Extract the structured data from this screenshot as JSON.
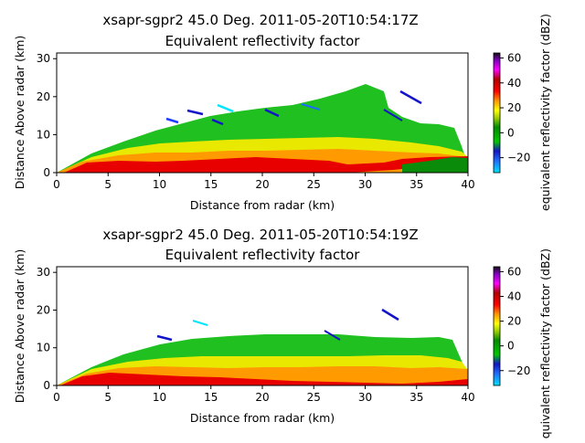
{
  "chart_data": [
    {
      "type": "heatmap",
      "title_line1": "xsapr-sgpr2 45.0 Deg. 2011-05-20T10:54:17Z",
      "title_line2": "Equivalent reflectivity factor",
      "xlabel": "Distance from radar (km)",
      "ylabel": "Distance Above radar  (km)",
      "xlim": [
        0,
        40
      ],
      "ylim": [
        0,
        31.5
      ],
      "xticks": [
        0,
        5,
        10,
        15,
        20,
        25,
        30,
        35,
        40
      ],
      "yticks": [
        0,
        10,
        20,
        30
      ],
      "grid": false,
      "colorbar": {
        "label": "equivalent reflectivity factor (dBZ)",
        "range": [
          -32,
          64
        ],
        "ticks": [
          -20,
          0,
          20,
          40,
          60
        ]
      },
      "echo_top_km": [
        [
          0,
          0
        ],
        [
          5,
          4.2
        ],
        [
          10,
          7.8
        ],
        [
          15,
          11.5
        ],
        [
          20,
          13.5
        ],
        [
          25,
          14.5
        ],
        [
          30,
          16
        ],
        [
          32,
          23.5
        ],
        [
          35,
          17
        ],
        [
          38,
          13
        ],
        [
          40,
          0
        ]
      ],
      "stray_echo_segments": [
        {
          "x": [
            10.5,
            11.5
          ],
          "y": [
            13.5,
            13
          ]
        },
        {
          "x": [
            12.5,
            13.5
          ],
          "y": [
            14.5,
            14
          ]
        },
        {
          "x": [
            14,
            15.5
          ],
          "y": [
            16.5,
            15.8
          ]
        },
        {
          "x": [
            15.5,
            16.5
          ],
          "y": [
            13.5,
            13
          ]
        },
        {
          "x": [
            18,
            19
          ],
          "y": [
            15,
            14.5
          ]
        },
        {
          "x": [
            34,
            36
          ],
          "y": [
            21,
            19
          ]
        }
      ]
    },
    {
      "type": "heatmap",
      "title_line1": "xsapr-sgpr2 45.0 Deg. 2011-05-20T10:54:19Z",
      "title_line2": "Equivalent reflectivity factor",
      "xlabel": "Distance from radar (km)",
      "ylabel": "Distance Above radar  (km)",
      "xlim": [
        0,
        40
      ],
      "ylim": [
        0,
        31.5
      ],
      "xticks": [
        0,
        5,
        10,
        15,
        20,
        25,
        30,
        35,
        40
      ],
      "yticks": [
        0,
        10,
        20,
        30
      ],
      "grid": false,
      "colorbar": {
        "label": "equivalent reflectivity factor (dBZ)",
        "range": [
          -32,
          64
        ],
        "ticks": [
          -20,
          0,
          20,
          40,
          60
        ]
      },
      "echo_top_km": [
        [
          0,
          0
        ],
        [
          5,
          4.5
        ],
        [
          10,
          8.5
        ],
        [
          15,
          11
        ],
        [
          20,
          12.5
        ],
        [
          25,
          12.5
        ],
        [
          30,
          14
        ],
        [
          35,
          13
        ],
        [
          38,
          12.5
        ],
        [
          40,
          0
        ]
      ],
      "stray_echo_segments": [
        {
          "x": [
            13,
            14.5
          ],
          "y": [
            17,
            16.3
          ]
        },
        {
          "x": [
            31.5,
            33
          ],
          "y": [
            20,
            18.2
          ]
        },
        {
          "x": [
            26,
            27.5
          ],
          "y": [
            17,
            16
          ]
        }
      ]
    }
  ]
}
